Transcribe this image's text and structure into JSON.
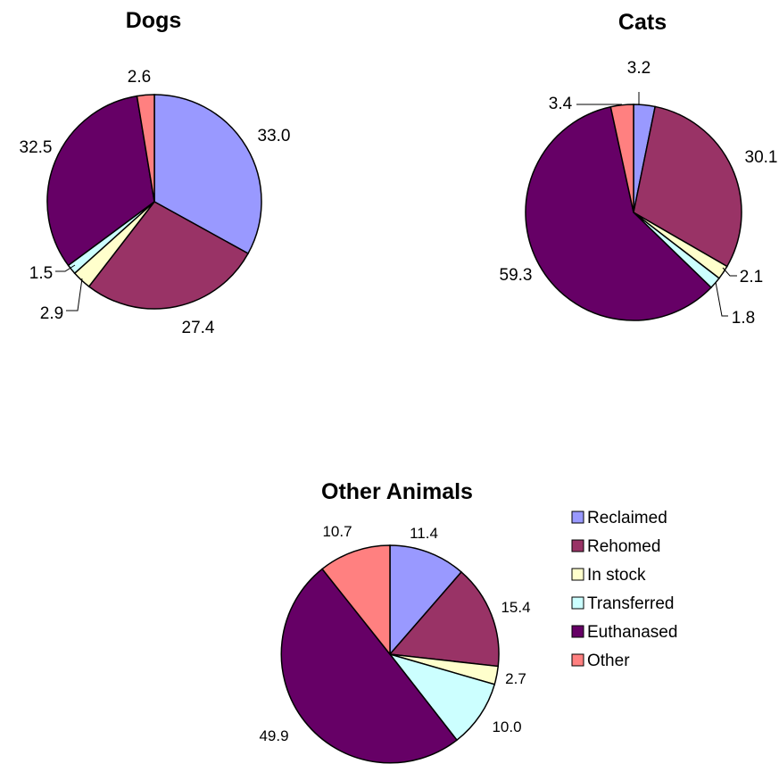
{
  "chart_data": [
    {
      "type": "pie",
      "title": "Dogs",
      "categories": [
        "Reclaimed",
        "Rehomed",
        "In stock",
        "Transferred",
        "Euthanased",
        "Other"
      ],
      "values": [
        33.0,
        27.4,
        2.9,
        1.5,
        32.5,
        2.6
      ],
      "labels": [
        "33.0",
        "27.4",
        "2.9",
        "1.5",
        "32.5",
        "2.6"
      ]
    },
    {
      "type": "pie",
      "title": "Cats",
      "categories": [
        "Reclaimed",
        "Rehomed",
        "In stock",
        "Transferred",
        "Euthanased",
        "Other"
      ],
      "values": [
        3.2,
        30.1,
        2.1,
        1.8,
        59.3,
        3.4
      ],
      "labels": [
        "3.2",
        "30.1",
        "2.1",
        "1.8",
        "59.3",
        "3.4"
      ]
    },
    {
      "type": "pie",
      "title": "Other Animals",
      "categories": [
        "Reclaimed",
        "Rehomed",
        "In stock",
        "Transferred",
        "Euthanased",
        "Other"
      ],
      "values": [
        11.4,
        15.4,
        2.7,
        10.0,
        49.9,
        10.7
      ],
      "labels": [
        "11.4",
        "15.4",
        "2.7",
        "10.0",
        "49.9",
        "10.7"
      ]
    }
  ],
  "legend": {
    "placement": "right",
    "items": [
      {
        "label": "Reclaimed",
        "color": "#9999ff"
      },
      {
        "label": "Rehomed",
        "color": "#993366"
      },
      {
        "label": "In stock",
        "color": "#ffffcc"
      },
      {
        "label": "Transferred",
        "color": "#ccffff"
      },
      {
        "label": "Euthanased",
        "color": "#660066"
      },
      {
        "label": "Other",
        "color": "#ff8080"
      }
    ]
  }
}
